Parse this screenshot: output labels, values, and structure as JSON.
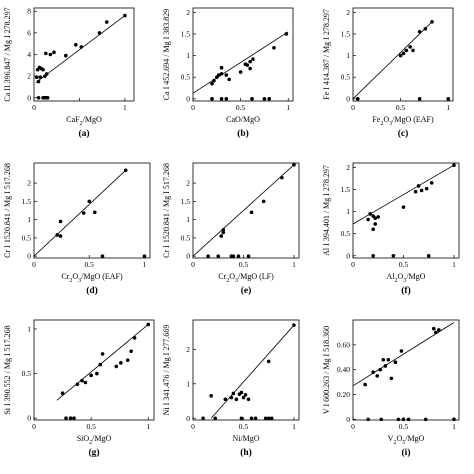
{
  "figure": {
    "panels": [
      "(a)",
      "(b)",
      "(c)",
      "(d)",
      "(e)",
      "(f)",
      "(g)",
      "(h)",
      "(i)"
    ]
  },
  "chart_data": [
    {
      "type": "scatter",
      "panel": "(a)",
      "xlabel": "CaF₂/MgO",
      "ylabel": "Ca II 396.847 / Mg I 278.297",
      "xlim": [
        0,
        1.1
      ],
      "ylim": [
        -0.3,
        8.3
      ],
      "xticks": [
        0,
        0.5,
        1
      ],
      "xtick_labels": [
        "0",
        "",
        "1"
      ],
      "yticks": [
        0,
        2,
        4,
        6,
        8
      ],
      "ytick_labels": [
        "0",
        "2",
        "4",
        "6",
        "8"
      ],
      "fit": [
        [
          0.02,
          1.4
        ],
        [
          1.0,
          7.6
        ]
      ],
      "points": [
        [
          0.05,
          0
        ],
        [
          0.1,
          0
        ],
        [
          0.11,
          0
        ],
        [
          0.12,
          0
        ],
        [
          0.13,
          0
        ],
        [
          0.14,
          0
        ],
        [
          0.15,
          0
        ],
        [
          0.03,
          1.9
        ],
        [
          0.05,
          1.5
        ],
        [
          0.07,
          1.9
        ],
        [
          0.04,
          2.6
        ],
        [
          0.06,
          2.8
        ],
        [
          0.08,
          2.7
        ],
        [
          0.1,
          2.6
        ],
        [
          0.12,
          2.0
        ],
        [
          0.14,
          2.2
        ],
        [
          0.13,
          4.1
        ],
        [
          0.18,
          4.0
        ],
        [
          0.22,
          4.2
        ],
        [
          0.35,
          3.9
        ],
        [
          0.46,
          4.9
        ],
        [
          0.52,
          4.7
        ],
        [
          0.72,
          6.0
        ],
        [
          0.8,
          7.0
        ],
        [
          1.0,
          7.6
        ]
      ]
    },
    {
      "type": "scatter",
      "panel": "(b)",
      "xlabel": "CaO/MgO",
      "ylabel": "Ca I 452.694 / Mg I 383.829",
      "xlim": [
        0,
        1.05
      ],
      "ylim": [
        -0.05,
        2.1
      ],
      "xticks": [
        0,
        0.5,
        1
      ],
      "xtick_labels": [
        "0",
        "0.5",
        "1"
      ],
      "yticks": [
        0,
        0.5,
        1,
        1.5,
        2
      ],
      "ytick_labels": [
        "0",
        "0.5",
        "1",
        "1.5",
        "2"
      ],
      "fit": [
        [
          0.0,
          0.13
        ],
        [
          1.0,
          1.55
        ]
      ],
      "points": [
        [
          0.2,
          0
        ],
        [
          0.3,
          0
        ],
        [
          0.35,
          0
        ],
        [
          0.62,
          0
        ],
        [
          0.75,
          0
        ],
        [
          0.8,
          0
        ],
        [
          0.2,
          0.35
        ],
        [
          0.22,
          0.42
        ],
        [
          0.25,
          0.5
        ],
        [
          0.27,
          0.55
        ],
        [
          0.3,
          0.58
        ],
        [
          0.3,
          0.72
        ],
        [
          0.35,
          0.55
        ],
        [
          0.38,
          0.45
        ],
        [
          0.5,
          0.62
        ],
        [
          0.55,
          0.8
        ],
        [
          0.57,
          0.78
        ],
        [
          0.6,
          0.86
        ],
        [
          0.63,
          0.92
        ],
        [
          0.6,
          0.7
        ],
        [
          0.85,
          1.18
        ],
        [
          0.98,
          1.5
        ]
      ]
    },
    {
      "type": "scatter",
      "panel": "(c)",
      "xlabel": "Fe₂O₃/MgO (EAF)",
      "ylabel": "Fe I 414.387 / Mg I 278.297",
      "xlim": [
        0,
        1.05
      ],
      "ylim": [
        -0.05,
        2.1
      ],
      "xticks": [
        0,
        0.5,
        1
      ],
      "xtick_labels": [
        "0",
        "0.5",
        "1"
      ],
      "yticks": [
        0,
        0.5,
        1,
        1.5,
        2
      ],
      "ytick_labels": [
        "0",
        "0.5",
        "1",
        "1.5",
        "2"
      ],
      "fit": [
        [
          0.0,
          0.0
        ],
        [
          0.83,
          1.78
        ]
      ],
      "points": [
        [
          0.05,
          0
        ],
        [
          0.7,
          0
        ],
        [
          1.0,
          0
        ],
        [
          0.5,
          1.0
        ],
        [
          0.53,
          1.05
        ],
        [
          0.56,
          1.12
        ],
        [
          0.6,
          1.2
        ],
        [
          0.63,
          1.12
        ],
        [
          0.7,
          1.55
        ],
        [
          0.76,
          1.62
        ],
        [
          0.83,
          1.78
        ]
      ]
    },
    {
      "type": "scatter",
      "panel": "(d)",
      "xlabel": "Cr₂O₃/MgO (EAF)",
      "ylabel": "Cr I 1520.841 / Mg I 517.268",
      "xlim": [
        0,
        1.05
      ],
      "ylim": [
        -0.05,
        2.55
      ],
      "xticks": [
        0,
        0.5,
        1
      ],
      "xtick_labels": [
        "0",
        "0.5",
        "1"
      ],
      "yticks": [
        0,
        0.5,
        1,
        1.5,
        2
      ],
      "ytick_labels": [
        "0",
        "0.5",
        "1",
        "1.5",
        "2"
      ],
      "fit": [
        [
          0.0,
          0.0
        ],
        [
          0.83,
          2.35
        ]
      ],
      "points": [
        [
          0.62,
          0
        ],
        [
          1.0,
          0
        ],
        [
          0.21,
          0.58
        ],
        [
          0.24,
          0.55
        ],
        [
          0.24,
          0.95
        ],
        [
          0.45,
          1.18
        ],
        [
          0.5,
          1.5
        ],
        [
          0.55,
          1.2
        ],
        [
          0.83,
          2.35
        ]
      ]
    },
    {
      "type": "scatter",
      "panel": "(e)",
      "xlabel": "Cr₂O₃/MgO (LF)",
      "ylabel": "Cr I 1520.841 / Mg I 517.268",
      "xlim": [
        0,
        1.05
      ],
      "ylim": [
        -0.05,
        2.55
      ],
      "xticks": [
        0,
        0.5,
        1
      ],
      "xtick_labels": [
        "0",
        "0.5",
        "1"
      ],
      "yticks": [
        0,
        0.5,
        1,
        1.5,
        2
      ],
      "ytick_labels": [
        "0",
        "0.5",
        "1",
        "1.5",
        "2"
      ],
      "fit": [
        [
          0.0,
          0.0
        ],
        [
          1.0,
          2.5
        ]
      ],
      "points": [
        [
          0.15,
          0
        ],
        [
          0.25,
          0
        ],
        [
          0.38,
          0
        ],
        [
          0.4,
          0
        ],
        [
          0.45,
          0
        ],
        [
          0.55,
          0
        ],
        [
          0.28,
          0.55
        ],
        [
          0.3,
          0.65
        ],
        [
          0.3,
          0.72
        ],
        [
          0.58,
          1.2
        ],
        [
          0.7,
          1.5
        ],
        [
          0.88,
          2.15
        ],
        [
          1.0,
          2.5
        ]
      ]
    },
    {
      "type": "scatter",
      "panel": "(f)",
      "xlabel": "Al₂O₃/MgO",
      "ylabel": "Al I 394.401 / Mg I 278.297",
      "xlim": [
        0,
        1.05
      ],
      "ylim": [
        -0.05,
        2.1
      ],
      "xticks": [
        0,
        0.5,
        1
      ],
      "xtick_labels": [
        "0",
        "0.5",
        "1"
      ],
      "yticks": [
        0,
        0.5,
        1,
        1.5,
        2
      ],
      "ytick_labels": [
        "0",
        "0.5",
        "1",
        "1.5",
        "2"
      ],
      "fit": [
        [
          0.0,
          0.72
        ],
        [
          1.0,
          2.05
        ]
      ],
      "points": [
        [
          0.2,
          0
        ],
        [
          0.4,
          0
        ],
        [
          0.75,
          0
        ],
        [
          0.15,
          0.82
        ],
        [
          0.17,
          0.95
        ],
        [
          0.2,
          0.9
        ],
        [
          0.2,
          0.6
        ],
        [
          0.22,
          0.72
        ],
        [
          0.22,
          0.85
        ],
        [
          0.25,
          0.88
        ],
        [
          0.5,
          1.1
        ],
        [
          0.62,
          1.45
        ],
        [
          0.65,
          1.58
        ],
        [
          0.68,
          1.48
        ],
        [
          0.73,
          1.52
        ],
        [
          0.78,
          1.65
        ],
        [
          1.0,
          2.05
        ]
      ]
    },
    {
      "type": "scatter",
      "panel": "(g)",
      "xlabel": "SiO₂/MgO",
      "ylabel": "Si I 390.552 / Mg I 517.268",
      "xlim": [
        0,
        1.05
      ],
      "ylim": [
        -0.02,
        1.1
      ],
      "xticks": [
        0,
        0.5,
        1
      ],
      "xtick_labels": [
        "0",
        "0.5",
        "1"
      ],
      "yticks": [
        0,
        0.5,
        1
      ],
      "ytick_labels": [
        "0",
        "0.5",
        "1"
      ],
      "fit": [
        [
          0.2,
          0.2
        ],
        [
          1.0,
          1.05
        ]
      ],
      "points": [
        [
          0.28,
          0
        ],
        [
          0.32,
          0
        ],
        [
          0.35,
          0
        ],
        [
          0.25,
          0.28
        ],
        [
          0.38,
          0.38
        ],
        [
          0.42,
          0.42
        ],
        [
          0.45,
          0.4
        ],
        [
          0.5,
          0.48
        ],
        [
          0.55,
          0.5
        ],
        [
          0.58,
          0.6
        ],
        [
          0.6,
          0.72
        ],
        [
          0.72,
          0.58
        ],
        [
          0.76,
          0.62
        ],
        [
          0.82,
          0.65
        ],
        [
          0.85,
          0.75
        ],
        [
          0.88,
          0.9
        ],
        [
          1.0,
          1.05
        ]
      ]
    },
    {
      "type": "scatter",
      "panel": "(h)",
      "xlabel": "Ni/MgO",
      "ylabel": "Ni I 341.476 / Mg I 277.669",
      "xlim": [
        0,
        1.05
      ],
      "ylim": [
        -0.05,
        2.85
      ],
      "xticks": [
        0,
        0.5,
        1
      ],
      "xtick_labels": [
        "0",
        "0.5",
        "1"
      ],
      "yticks": [
        0,
        1,
        2
      ],
      "ytick_labels": [
        "0",
        "1",
        "2"
      ],
      "fit": [
        [
          0.18,
          0.0
        ],
        [
          1.0,
          2.7
        ]
      ],
      "points": [
        [
          0.1,
          0
        ],
        [
          0.22,
          0
        ],
        [
          0.48,
          0
        ],
        [
          0.58,
          0
        ],
        [
          0.62,
          0
        ],
        [
          0.72,
          0
        ],
        [
          0.75,
          0
        ],
        [
          0.78,
          0
        ],
        [
          0.18,
          0.65
        ],
        [
          0.32,
          0.55
        ],
        [
          0.38,
          0.6
        ],
        [
          0.4,
          0.72
        ],
        [
          0.43,
          0.55
        ],
        [
          0.46,
          0.7
        ],
        [
          0.48,
          0.75
        ],
        [
          0.5,
          0.6
        ],
        [
          0.52,
          0.68
        ],
        [
          0.55,
          0.55
        ],
        [
          0.75,
          1.65
        ],
        [
          1.0,
          2.7
        ]
      ]
    },
    {
      "type": "scatter",
      "panel": "(i)",
      "xlabel": "V₂O₅/MgO",
      "ylabel": "V I 600.263 / Mg I 518.360",
      "xlim": [
        0,
        1.05
      ],
      "ylim": [
        -0.005,
        0.8
      ],
      "xticks": [
        0,
        0.5,
        1
      ],
      "xtick_labels": [
        "0",
        "0.5",
        "1"
      ],
      "yticks": [
        0,
        0.2,
        0.4,
        0.6
      ],
      "ytick_labels": [
        "0",
        "0.20",
        "0.40",
        "0.60"
      ],
      "fit": [
        [
          0.0,
          0.27
        ],
        [
          1.0,
          0.78
        ]
      ],
      "points": [
        [
          0.15,
          0
        ],
        [
          0.28,
          0
        ],
        [
          0.45,
          0
        ],
        [
          0.5,
          0
        ],
        [
          0.55,
          0
        ],
        [
          0.72,
          0
        ],
        [
          1.0,
          0
        ],
        [
          0.12,
          0.28
        ],
        [
          0.2,
          0.38
        ],
        [
          0.24,
          0.35
        ],
        [
          0.27,
          0.4
        ],
        [
          0.3,
          0.48
        ],
        [
          0.32,
          0.43
        ],
        [
          0.35,
          0.48
        ],
        [
          0.38,
          0.33
        ],
        [
          0.42,
          0.46
        ],
        [
          0.48,
          0.55
        ],
        [
          0.8,
          0.73
        ],
        [
          0.82,
          0.7
        ],
        [
          0.85,
          0.72
        ]
      ]
    }
  ]
}
